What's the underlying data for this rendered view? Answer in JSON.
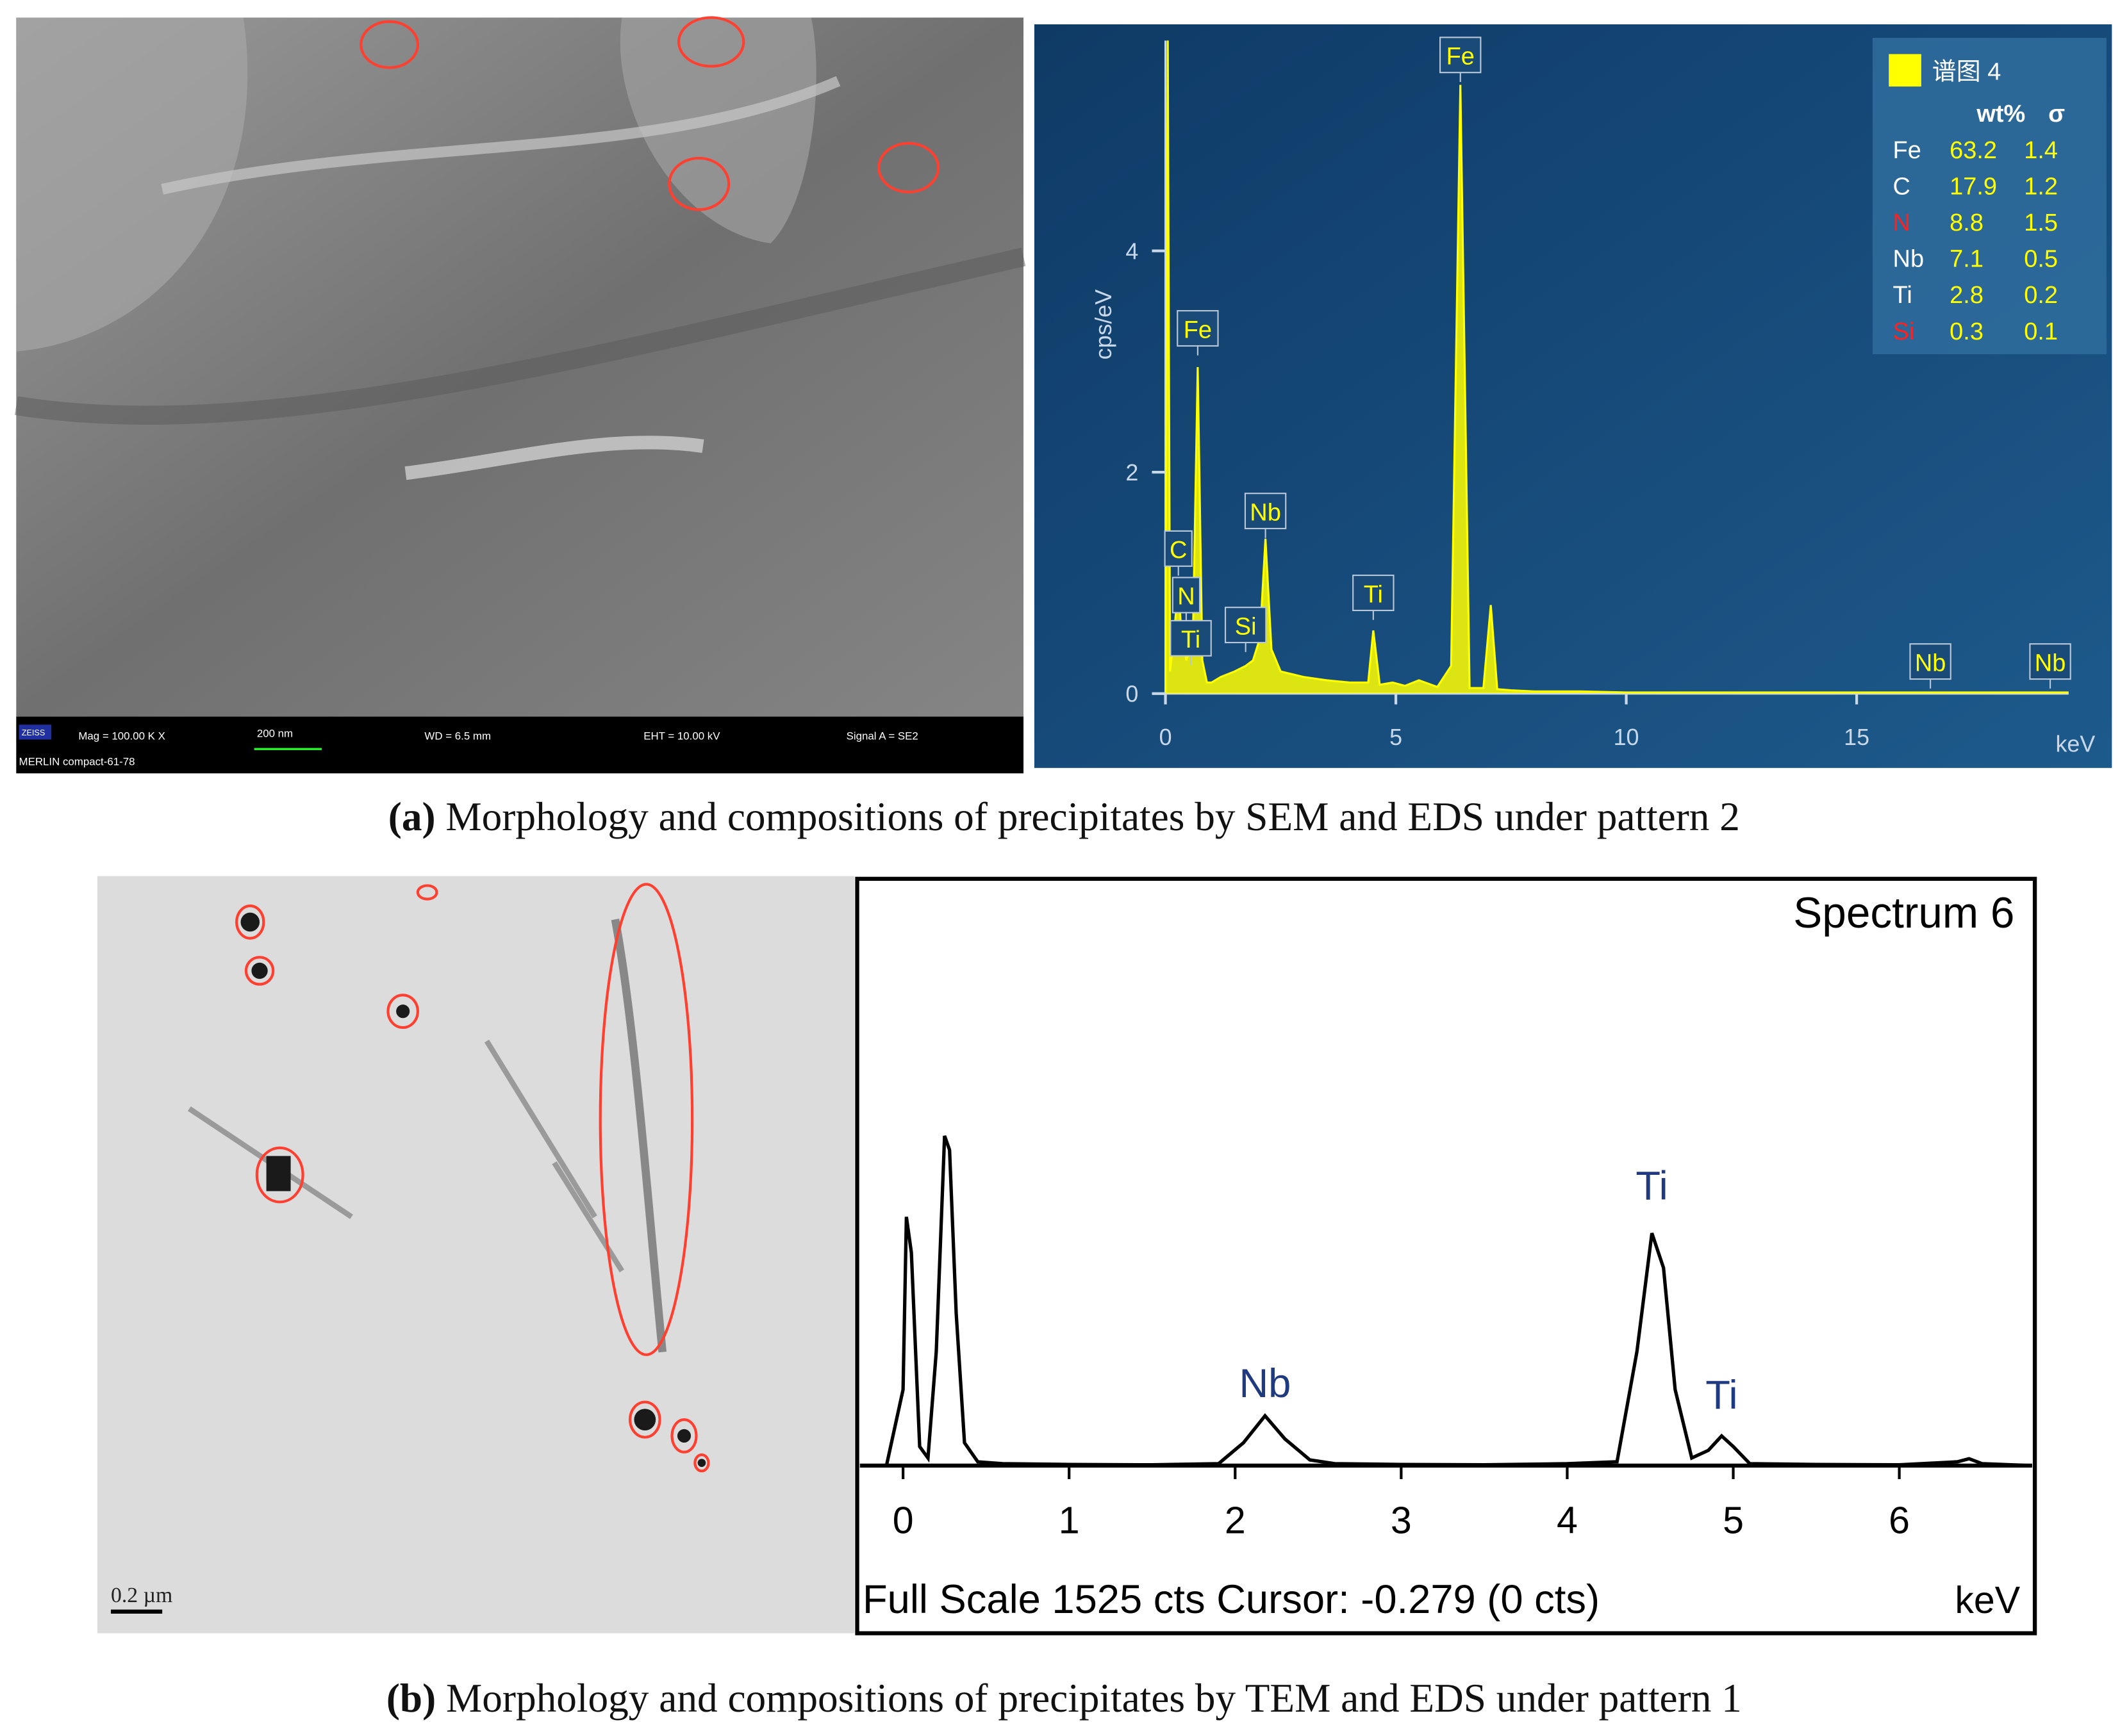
{
  "sem_image": {
    "brand": "ZEISS",
    "mag": "Mag = 100.00 K X",
    "scale": "200 nm",
    "wd": "WD = 6.5 mm",
    "eht": "EHT = 10.00 kV",
    "signal": "Signal A = SE2",
    "instrument": "MERLIN compact-61-78"
  },
  "tem_image": {
    "scale": "0.2 µm"
  },
  "captions": [
    {
      "label": "(a)",
      "text": "Morphology and compositions of precipitates by SEM and EDS under pattern 2"
    },
    {
      "label": "(b)",
      "text": "Morphology and compositions of precipitates by TEM and EDS under pattern 1"
    }
  ],
  "chart_data": [
    {
      "type": "area",
      "xlabel": "keV",
      "ylabel": "cps/eV",
      "color": "#ffff00",
      "xlim": [
        0,
        19.6
      ],
      "ylim": [
        0,
        5.9
      ],
      "xticks": [
        0,
        5,
        10,
        15
      ],
      "yticks": [
        0,
        2,
        4
      ],
      "x": [
        0,
        0.05,
        0.1,
        0.2,
        0.28,
        0.35,
        0.4,
        0.45,
        0.52,
        0.6,
        0.7,
        0.8,
        0.9,
        1.0,
        1.2,
        1.5,
        1.74,
        1.9,
        2.05,
        2.17,
        2.3,
        2.5,
        3.0,
        3.5,
        4.0,
        4.4,
        4.51,
        4.65,
        4.93,
        5.2,
        5.5,
        5.9,
        6.2,
        6.4,
        6.6,
        6.9,
        7.06,
        7.2,
        7.5,
        8,
        9,
        10,
        12,
        14,
        16,
        18,
        19.6
      ],
      "values": [
        0,
        5.9,
        0.2,
        0.6,
        1.0,
        0.5,
        0.6,
        0.3,
        0.4,
        0.6,
        2.95,
        0.3,
        0.1,
        0.1,
        0.15,
        0.2,
        0.25,
        0.3,
        0.5,
        1.4,
        0.4,
        0.2,
        0.15,
        0.12,
        0.1,
        0.1,
        0.57,
        0.08,
        0.1,
        0.07,
        0.12,
        0.06,
        0.25,
        5.5,
        0.05,
        0.05,
        0.8,
        0.04,
        0.03,
        0.02,
        0.02,
        0.01,
        0.01,
        0.01,
        0.01,
        0.01,
        0.01
      ],
      "annotations": [
        {
          "text": "C",
          "x": 0.28,
          "y": 1.31
        },
        {
          "text": "N",
          "x": 0.45,
          "y": 0.89
        },
        {
          "text": "Ti",
          "x": 0.55,
          "y": 0.5
        },
        {
          "text": "Fe",
          "x": 0.7,
          "y": 3.3
        },
        {
          "text": "Si",
          "x": 1.74,
          "y": 0.62
        },
        {
          "text": "Nb",
          "x": 2.17,
          "y": 1.65
        },
        {
          "text": "Ti",
          "x": 4.51,
          "y": 0.91
        },
        {
          "text": "Fe",
          "x": 6.4,
          "y": 5.77
        },
        {
          "text": "Nb",
          "x": 16.6,
          "y": 0.29
        },
        {
          "text": "Nb",
          "x": 19.2,
          "y": 0.29
        }
      ],
      "legend": {
        "title": "谱图 4",
        "columns": [
          "wt%",
          "σ"
        ],
        "rows": [
          {
            "element": "Fe",
            "wt": 63.2,
            "sigma": 1.4,
            "color": "#ffffff"
          },
          {
            "element": "C",
            "wt": 17.9,
            "sigma": 1.2,
            "color": "#ffffff"
          },
          {
            "element": "N",
            "wt": 8.8,
            "sigma": 1.5,
            "color": "#ff2020"
          },
          {
            "element": "Nb",
            "wt": 7.1,
            "sigma": 0.5,
            "color": "#ffffff"
          },
          {
            "element": "Ti",
            "wt": 2.8,
            "sigma": 0.2,
            "color": "#ffffff"
          },
          {
            "element": "Si",
            "wt": 0.3,
            "sigma": 0.1,
            "color": "#ff2020"
          }
        ]
      }
    },
    {
      "type": "line",
      "title": "Spectrum 6",
      "footer": "Full Scale 1525 cts Cursor: -0.279  (0 cts)",
      "xlabel": "keV",
      "color": "#000000",
      "xlim": [
        -0.26,
        6.8
      ],
      "ylim": [
        0,
        1525
      ],
      "xticks": [
        0,
        1,
        2,
        3,
        4,
        5,
        6
      ],
      "x": [
        -0.1,
        0.0,
        0.02,
        0.05,
        0.1,
        0.15,
        0.2,
        0.25,
        0.28,
        0.32,
        0.37,
        0.45,
        0.6,
        1.0,
        1.5,
        1.9,
        2.05,
        2.18,
        2.3,
        2.45,
        2.6,
        3.0,
        3.5,
        4.0,
        4.3,
        4.42,
        4.51,
        4.58,
        4.65,
        4.75,
        4.85,
        4.93,
        5.0,
        5.1,
        5.5,
        6.0,
        6.35,
        6.42,
        6.5,
        6.8
      ],
      "values": [
        0,
        200,
        654,
        560,
        50,
        20,
        300,
        867,
        830,
        400,
        60,
        10,
        5,
        3,
        2,
        5,
        60,
        131,
        70,
        15,
        5,
        3,
        2,
        5,
        10,
        300,
        611,
        520,
        200,
        20,
        40,
        78,
        50,
        5,
        3,
        2,
        10,
        18,
        5,
        0
      ],
      "annotations": [
        {
          "text": "Nb",
          "x": 2.18,
          "y": 180
        },
        {
          "text": "Ti",
          "x": 4.51,
          "y": 700
        },
        {
          "text": "Ti",
          "x": 4.93,
          "y": 150
        }
      ]
    }
  ]
}
